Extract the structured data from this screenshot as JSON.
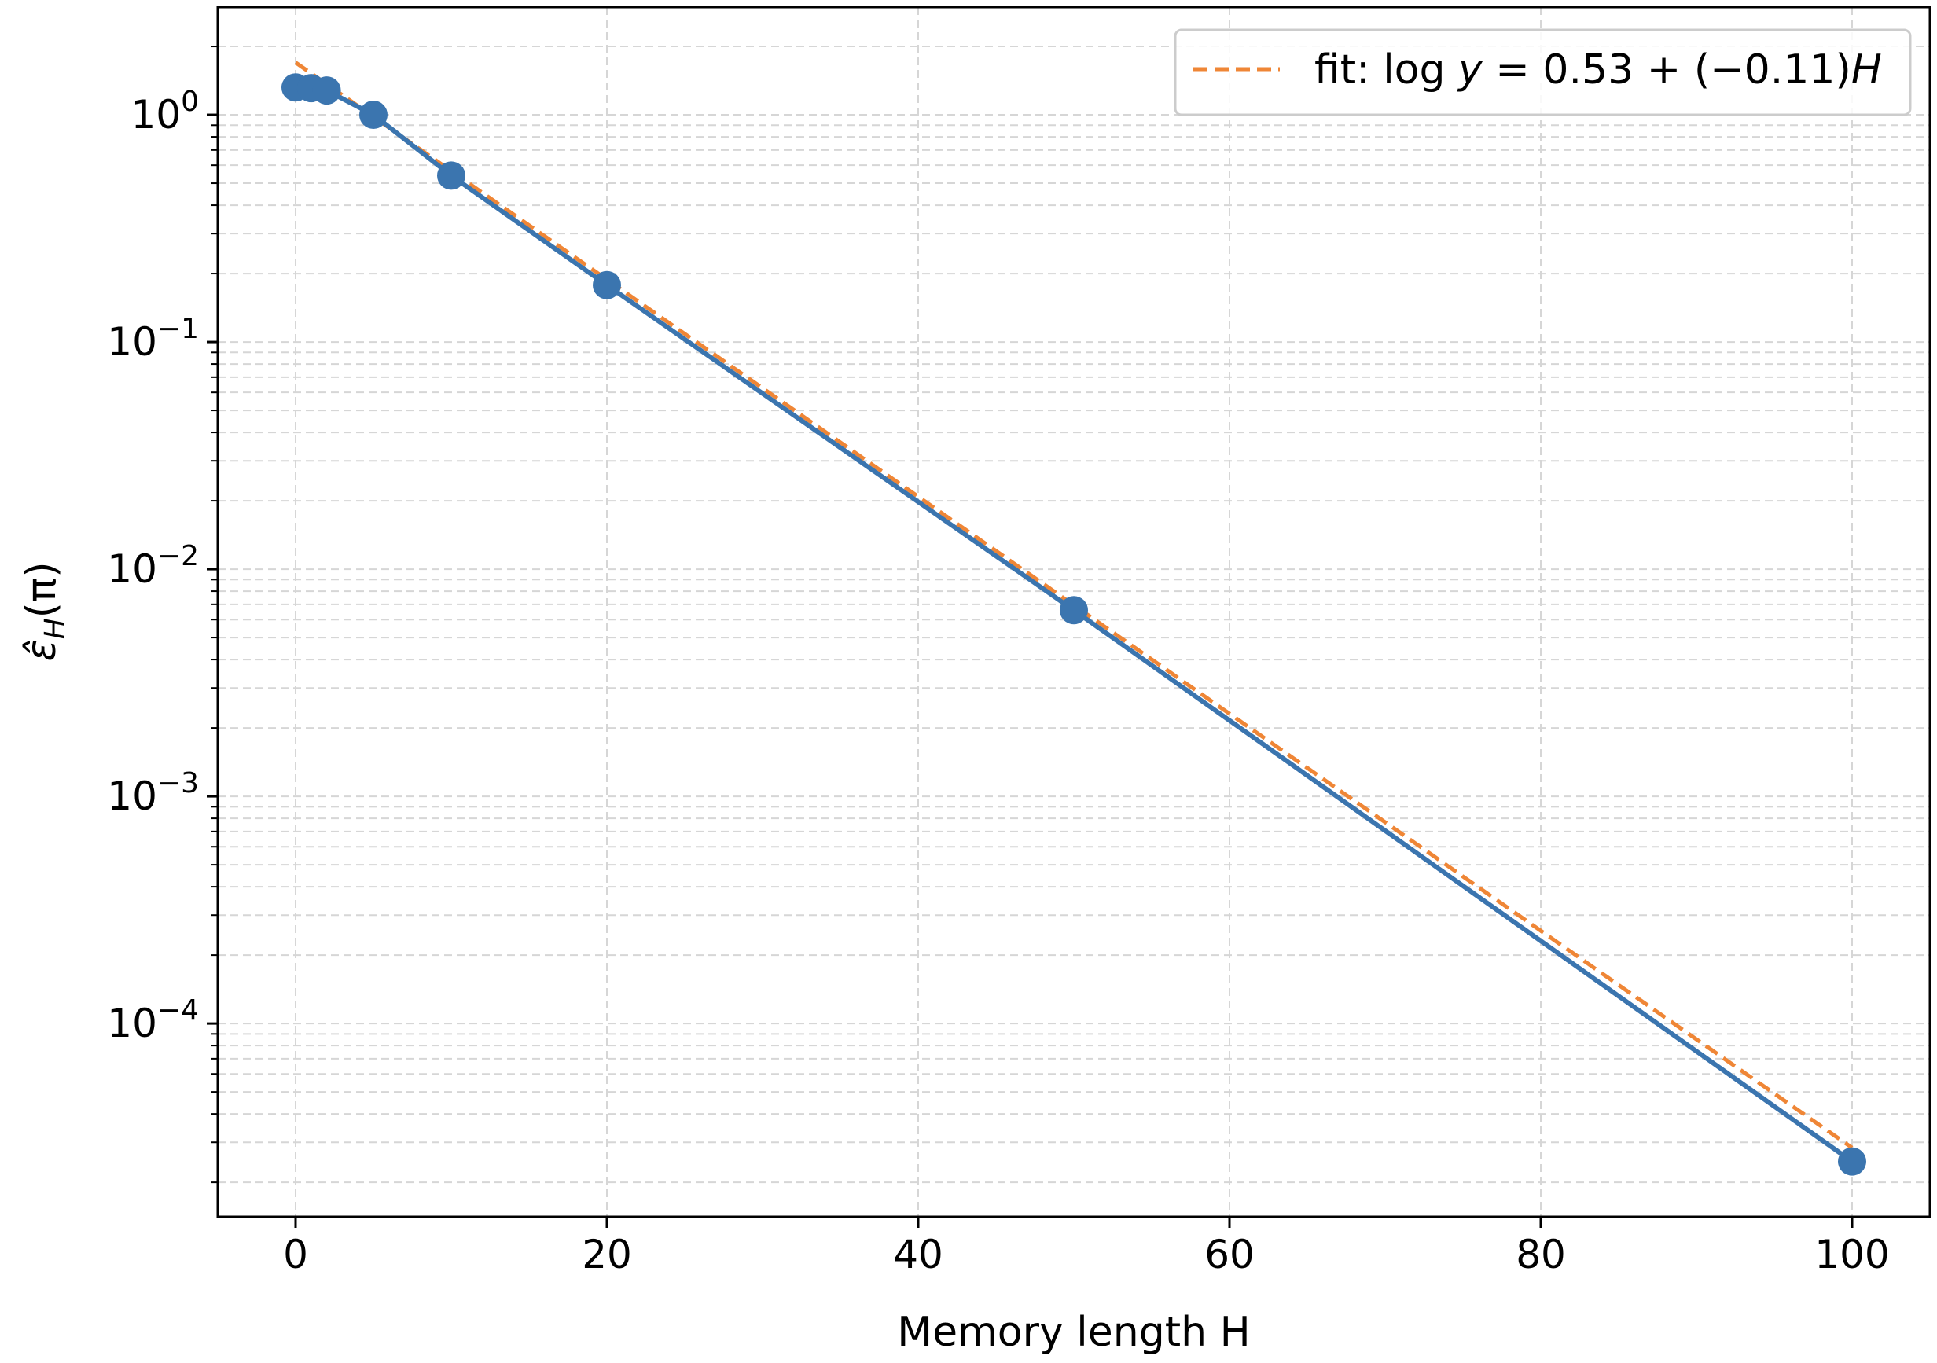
{
  "chart_data": {
    "type": "line",
    "title": "",
    "xlabel": "Memory length H",
    "ylabel": "ε̂_H(π)",
    "ylabel_main": "ε̂",
    "ylabel_sub": "H",
    "ylabel_tail": "(π)",
    "xscale": "linear",
    "yscale": "log",
    "xlim": [
      -5,
      105
    ],
    "ylim": [
      1.41e-05,
      2.98
    ],
    "grid": true,
    "legend_position": "top-right",
    "x_ticks": [
      0,
      20,
      40,
      60,
      80,
      100
    ],
    "x_tick_labels": [
      "0",
      "20",
      "40",
      "60",
      "80",
      "100"
    ],
    "y_ticks": [
      1,
      0.1,
      0.01,
      0.001,
      0.0001
    ],
    "y_tick_labels": [
      {
        "base": "10",
        "exp": "0"
      },
      {
        "base": "10",
        "exp": "−1"
      },
      {
        "base": "10",
        "exp": "−2"
      },
      {
        "base": "10",
        "exp": "−3"
      },
      {
        "base": "10",
        "exp": "−4"
      }
    ],
    "series": [
      {
        "name": "ε̂_H(π)",
        "color": "#3b75af",
        "style": "solid-markers",
        "x": [
          0,
          1,
          2,
          5,
          10,
          20,
          50,
          100
        ],
        "y": [
          1.32,
          1.31,
          1.28,
          1.0,
          0.54,
          0.178,
          0.0066,
          2.47e-05
        ]
      },
      {
        "name": "fit: log y = 0.53 + (−0.11)H",
        "color": "#ef8636",
        "style": "dashed",
        "intercept": 0.53,
        "slope": -0.11,
        "x_range": [
          0,
          100
        ]
      }
    ],
    "legend": [
      {
        "label": "fit: log y = 0.53 + (−0.11)H",
        "label_prefix": "fit: log ",
        "label_y": "y",
        "label_mid": " = 0.53 + (−0.11)",
        "label_H": "H"
      }
    ]
  }
}
